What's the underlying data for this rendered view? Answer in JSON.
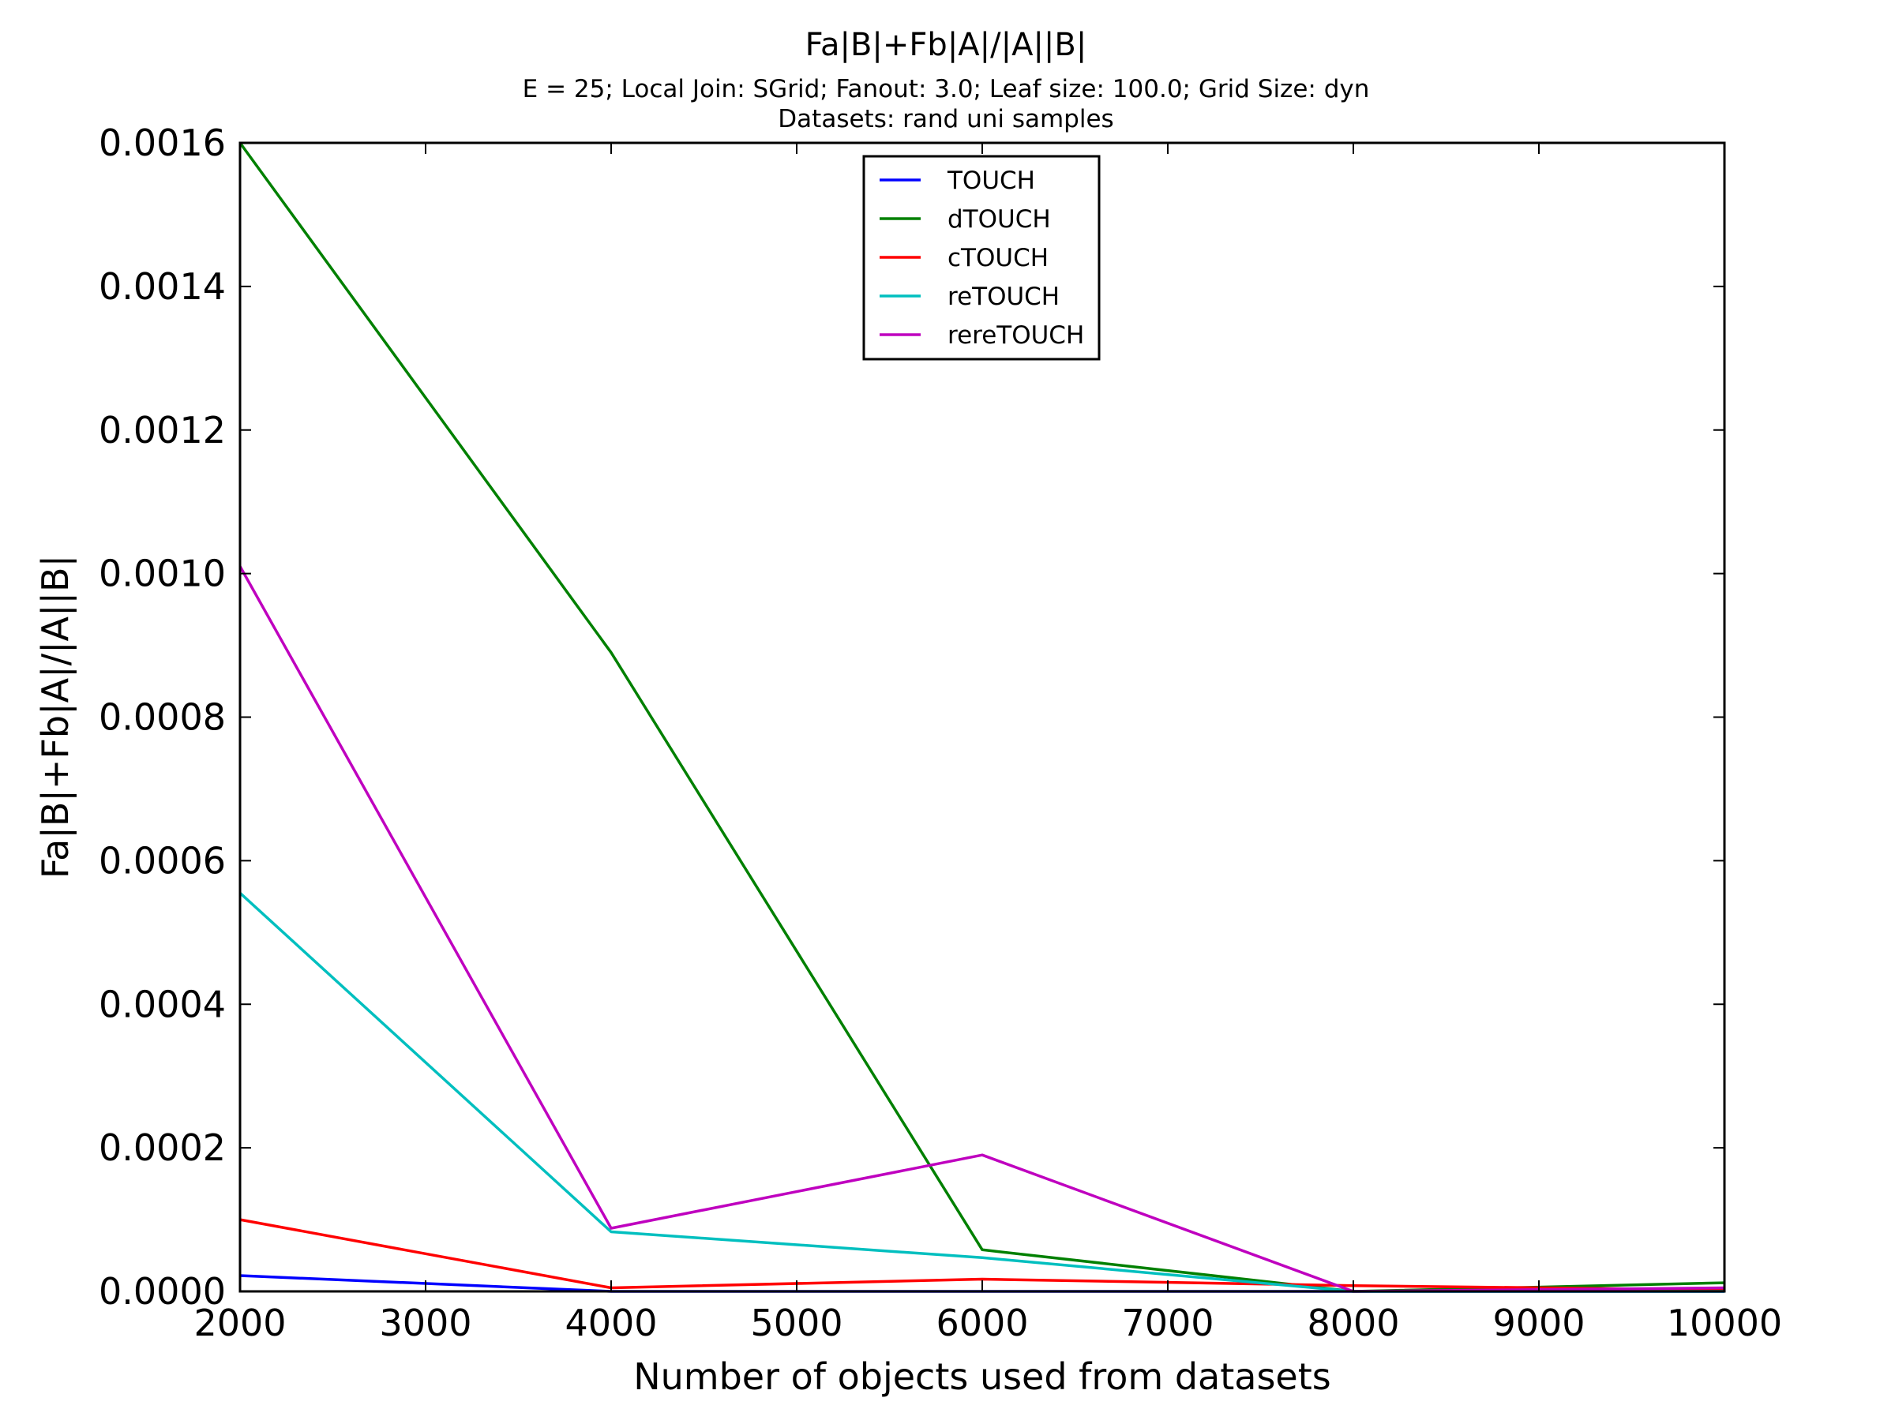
{
  "chart_data": {
    "type": "line",
    "title": "Fa|B|+Fb|A|/|A||B|",
    "subtitle_lines": [
      "E = 25; Local Join: SGrid; Fanout: 3.0; Leaf size: 100.0; Grid Size: dyn",
      "Datasets: rand uni samples"
    ],
    "xlabel": "Number of objects used from datasets",
    "ylabel": "Fa|B|+Fb|A|/|A||B|",
    "xlim": [
      2000,
      10000
    ],
    "ylim": [
      0,
      0.0016
    ],
    "x_ticks": [
      2000,
      3000,
      4000,
      5000,
      6000,
      7000,
      8000,
      9000,
      10000
    ],
    "x_tick_labels": [
      "2000",
      "3000",
      "4000",
      "5000",
      "6000",
      "7000",
      "8000",
      "9000",
      "10000"
    ],
    "y_ticks": [
      0,
      0.0002,
      0.0004,
      0.0006,
      0.0008,
      0.001,
      0.0012,
      0.0014,
      0.0016
    ],
    "y_tick_labels": [
      "0.0000",
      "0.0002",
      "0.0004",
      "0.0006",
      "0.0008",
      "0.0010",
      "0.0012",
      "0.0014",
      "0.0016"
    ],
    "grid": false,
    "legend_position": "upper-center",
    "x": [
      2000,
      4000,
      6000,
      8000,
      10000
    ],
    "series": [
      {
        "name": "TOUCH",
        "color": "#0000ff",
        "values": [
          2.2e-05,
          0.0,
          0.0,
          0.0,
          0.0
        ]
      },
      {
        "name": "dTOUCH",
        "color": "#008000",
        "values": [
          0.0016,
          0.00089,
          5.8e-05,
          0.0,
          1.2e-05
        ]
      },
      {
        "name": "cTOUCH",
        "color": "#ff0000",
        "values": [
          0.0001,
          5e-06,
          1.7e-05,
          8e-06,
          2e-06
        ]
      },
      {
        "name": "reTOUCH",
        "color": "#00bfbf",
        "values": [
          0.000555,
          8.3e-05,
          4.7e-05,
          0.0,
          0.0
        ]
      },
      {
        "name": "rereTOUCH",
        "color": "#bf00bf",
        "values": [
          0.00101,
          8.8e-05,
          0.00019,
          0.0,
          5e-06
        ]
      }
    ]
  }
}
